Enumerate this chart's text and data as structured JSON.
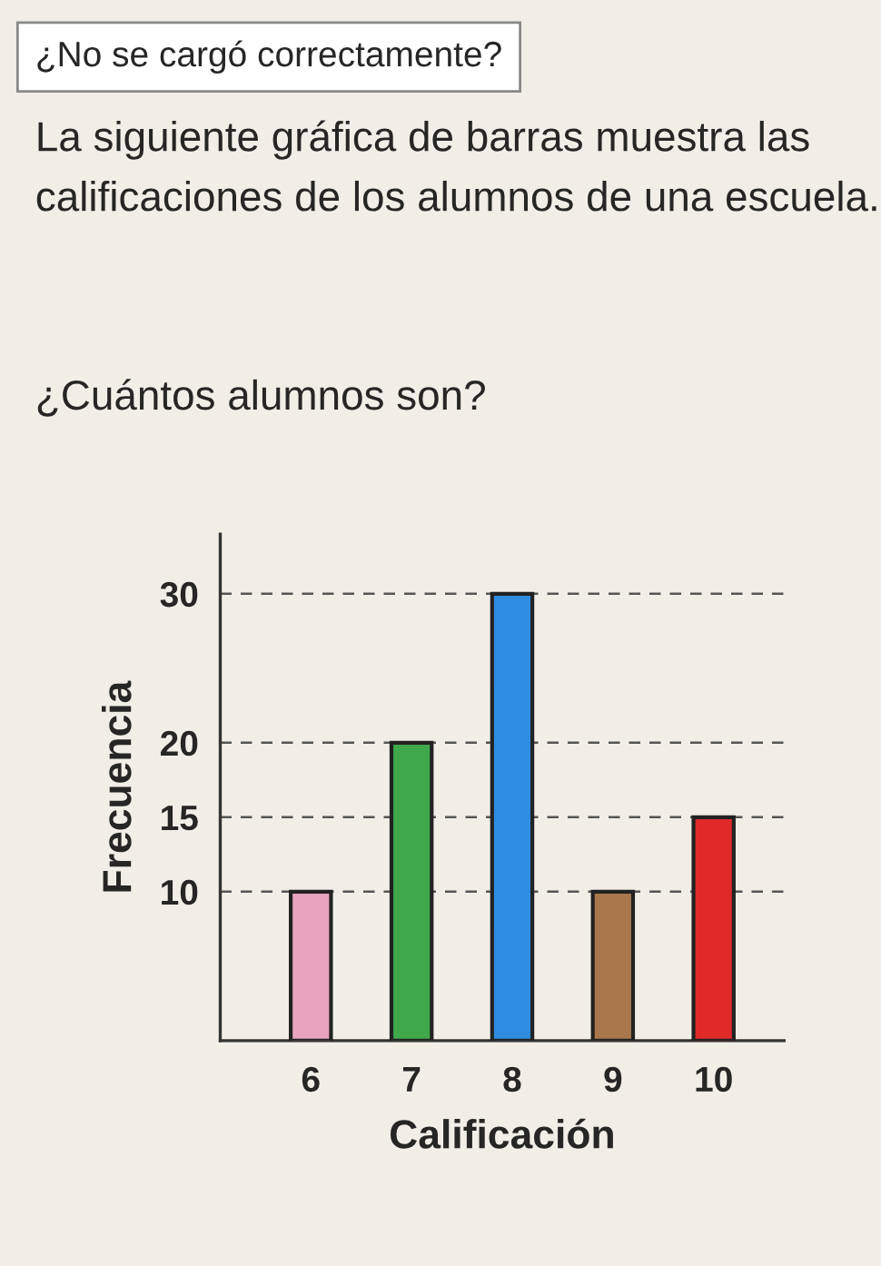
{
  "chart_data": {
    "type": "bar",
    "title": "La siguiente gráfica de barras muestra las calificaciones de los alumnos de una escuela.",
    "subtitle": "¿Cuántos alumnos son?",
    "annotations": [
      "¿No se cargó correctamente?"
    ],
    "xlabel": "Calificación",
    "ylabel": "Frecuencia",
    "categories": [
      "6",
      "7",
      "8",
      "9",
      "10"
    ],
    "values": [
      10,
      20,
      30,
      10,
      15
    ],
    "colors": [
      "#e8a3bd",
      "#3fa84a",
      "#2f8de0",
      "#a8784c",
      "#e02a2a"
    ],
    "ylim": [
      0,
      34
    ],
    "yticks": [
      10,
      15,
      20,
      30
    ],
    "grid": "y"
  }
}
